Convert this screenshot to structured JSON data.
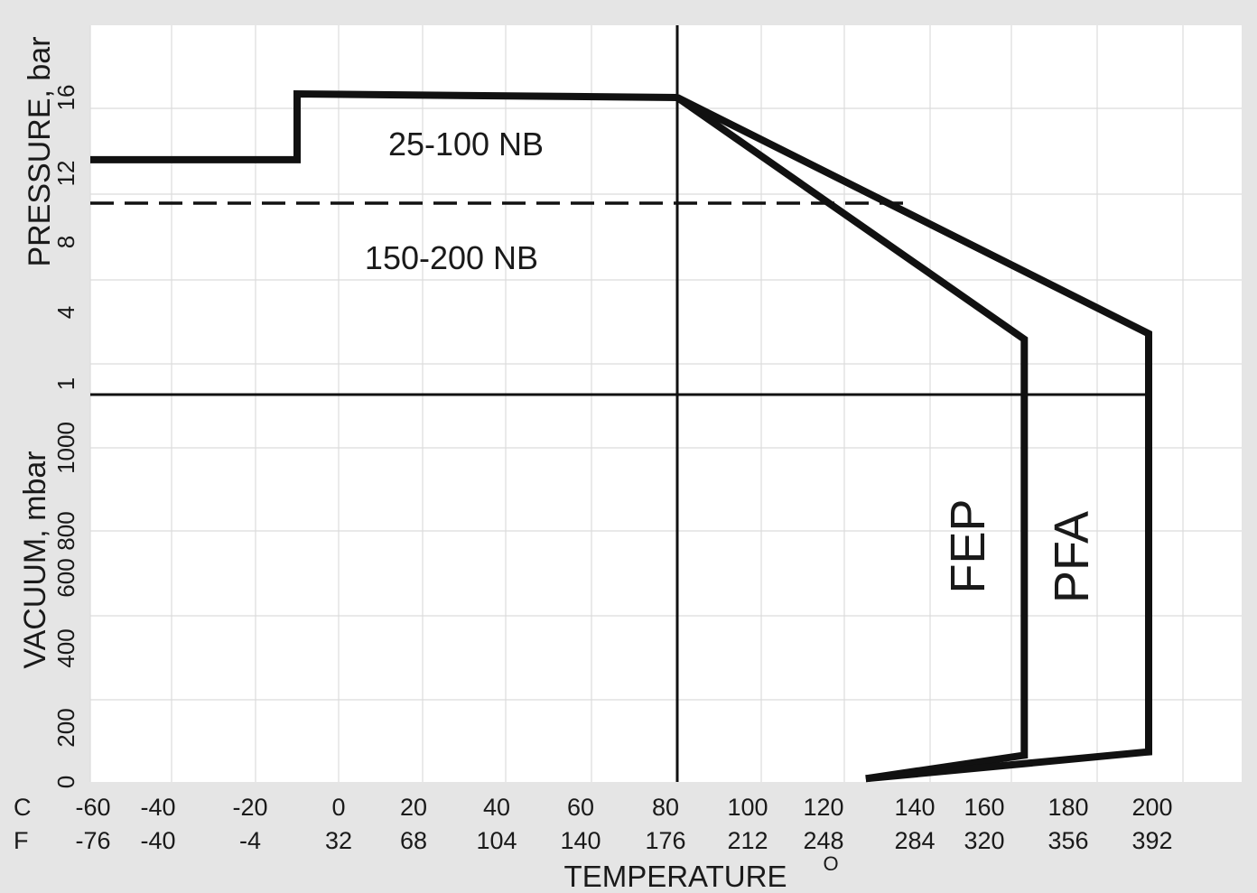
{
  "chart_data": {
    "type": "line",
    "title": "",
    "xlabel": "TEMPERATURE",
    "xlabel_degree": "O",
    "ylabel_pressure": "PRESSURE, bar",
    "ylabel_vacuum": "VACUUM, mbar",
    "row_label_c": "C",
    "row_label_f": "F",
    "x_ticks_c": [
      "-60",
      "-40",
      "-20",
      "0",
      "20",
      "40",
      "60",
      "80",
      "100",
      "120",
      "140",
      "160",
      "180",
      "200"
    ],
    "x_ticks_f": [
      "-76",
      "-40",
      "-4",
      "32",
      "68",
      "104",
      "140",
      "176",
      "212",
      "248",
      "284",
      "320",
      "356",
      "392"
    ],
    "y_ticks_pressure": [
      "16",
      "12",
      "8",
      "4",
      "1"
    ],
    "y_ticks_vacuum": [
      "1000",
      "800",
      "600",
      "400",
      "200",
      "0"
    ],
    "xlim": [
      -60,
      200
    ],
    "grid": true,
    "reference_lines": {
      "vertical_temperature_c": 80,
      "horizontal_pressure_bar": 1
    },
    "region_labels": {
      "upper": "25-100 NB",
      "lower": "150-200 NB"
    },
    "series": [
      {
        "name": "25-100 NB",
        "style": "solid",
        "points": [
          [
            -60,
            12.5
          ],
          [
            -10,
            12.5
          ],
          [
            -10,
            16.8
          ],
          [
            80,
            16.6
          ]
        ]
      },
      {
        "name": "150-200 NB",
        "style": "dashed",
        "points": [
          [
            -60,
            10
          ],
          [
            135,
            10
          ]
        ]
      },
      {
        "name": "FEP",
        "style": "solid",
        "points": [
          [
            80,
            16.6
          ],
          [
            163,
            3
          ],
          [
            163,
            1
          ],
          [
            163,
            80
          ],
          [
            125,
            10
          ]
        ]
      },
      {
        "name": "PFA",
        "style": "solid",
        "points": [
          [
            80,
            16.6
          ],
          [
            200,
            3.2
          ],
          [
            200,
            1
          ],
          [
            200,
            90
          ],
          [
            125,
            10
          ]
        ]
      }
    ],
    "colors": {
      "line": "#111111",
      "grid": "#dcdcdc",
      "plot_bg": "#ffffff",
      "frame_bg": "#e5e5e5"
    }
  }
}
